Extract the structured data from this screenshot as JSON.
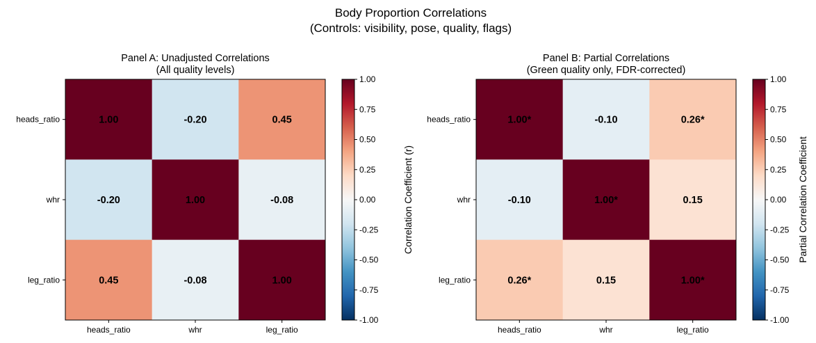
{
  "figure": {
    "title_line1": "Body Proportion Correlations",
    "title_line2": "(Controls: visibility, pose, quality, flags)"
  },
  "colormap": {
    "name": "RdBu_r",
    "stops": [
      "#053061",
      "#2166ac",
      "#4393c3",
      "#92c5de",
      "#d1e5f0",
      "#f7f7f7",
      "#fddbc7",
      "#f4a582",
      "#d6604d",
      "#b2182b",
      "#67001f"
    ]
  },
  "chart_data": [
    {
      "type": "heatmap",
      "title_line1": "Panel A: Unadjusted Correlations",
      "title_line2": "(All quality levels)",
      "x_categories": [
        "heads_ratio",
        "whr",
        "leg_ratio"
      ],
      "y_categories": [
        "heads_ratio",
        "whr",
        "leg_ratio"
      ],
      "values": [
        [
          1.0,
          -0.2,
          0.45
        ],
        [
          -0.2,
          1.0,
          -0.08
        ],
        [
          0.45,
          -0.08,
          1.0
        ]
      ],
      "labels": [
        [
          "1.00",
          "-0.20",
          "0.45"
        ],
        [
          "-0.20",
          "1.00",
          "-0.08"
        ],
        [
          "0.45",
          "-0.08",
          "1.00"
        ]
      ],
      "colorbar": {
        "label": "Correlation Coefficient (r)",
        "range": [
          -1.0,
          1.0
        ],
        "ticks": [
          "1.00",
          "0.75",
          "0.50",
          "0.25",
          "0.00",
          "-0.25",
          "-0.50",
          "-0.75",
          "-1.00"
        ]
      }
    },
    {
      "type": "heatmap",
      "title_line1": "Panel B: Partial Correlations",
      "title_line2": "(Green quality only, FDR-corrected)",
      "x_categories": [
        "heads_ratio",
        "whr",
        "leg_ratio"
      ],
      "y_categories": [
        "heads_ratio",
        "whr",
        "leg_ratio"
      ],
      "values": [
        [
          1.0,
          -0.1,
          0.26
        ],
        [
          -0.1,
          1.0,
          0.15
        ],
        [
          0.26,
          0.15,
          1.0
        ]
      ],
      "labels": [
        [
          "1.00*",
          "-0.10",
          "0.26*"
        ],
        [
          "-0.10",
          "1.00*",
          "0.15"
        ],
        [
          "0.26*",
          "0.15",
          "1.00*"
        ]
      ],
      "colorbar": {
        "label": "Partial Correlation Coefficient",
        "range": [
          -1.0,
          1.0
        ],
        "ticks": [
          "1.00",
          "0.75",
          "0.50",
          "0.25",
          "0.00",
          "-0.25",
          "-0.50",
          "-0.75",
          "-1.00"
        ]
      }
    }
  ]
}
